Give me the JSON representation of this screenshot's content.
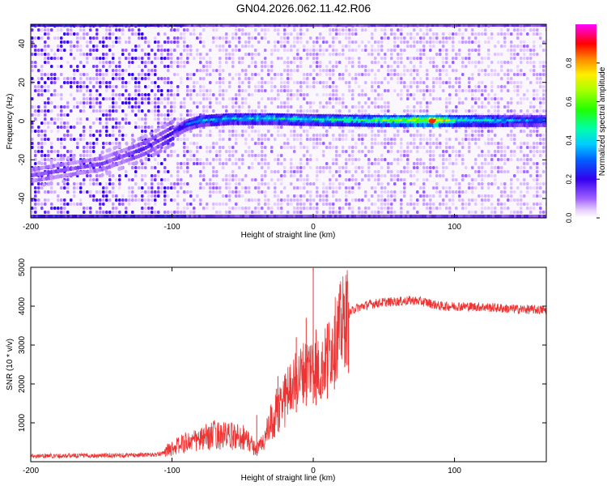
{
  "title": "GN04.2026.062.11.42.R06",
  "chart_data": [
    {
      "type": "heatmap",
      "xlabel": "Height of straight line (km)",
      "ylabel": "Frequency (Hz)",
      "xlim": [
        -200,
        165
      ],
      "ylim": [
        -50,
        50
      ],
      "xticks": [
        -200,
        -100,
        0,
        100
      ],
      "yticks": [
        -40,
        -20,
        0,
        20,
        40
      ],
      "colorbar": {
        "label": "Normalized spectral amplitude",
        "range": [
          0,
          1
        ],
        "ticks": [
          "0.0",
          "0.2",
          "0.4",
          "0.6",
          "0.8"
        ]
      },
      "ridge": {
        "frequency_profile": [
          [
            -200,
            -28
          ],
          [
            -150,
            -22
          ],
          [
            -120,
            -14
          ],
          [
            -100,
            -6
          ],
          [
            -90,
            -2
          ],
          [
            -80,
            0
          ],
          [
            -60,
            1
          ],
          [
            -30,
            1
          ],
          [
            0,
            0.5
          ],
          [
            50,
            0
          ],
          [
            100,
            0
          ],
          [
            165,
            0
          ]
        ],
        "amplitude_profile": [
          [
            -110,
            0.15
          ],
          [
            -95,
            0.25
          ],
          [
            -80,
            0.35
          ],
          [
            -40,
            0.4
          ],
          [
            0,
            0.45
          ],
          [
            40,
            0.5
          ],
          [
            80,
            0.75
          ],
          [
            84,
            0.9
          ],
          [
            100,
            0.5
          ],
          [
            140,
            0.35
          ],
          [
            165,
            0.3
          ]
        ]
      }
    },
    {
      "type": "line",
      "xlabel": "Height of straight line (km)",
      "ylabel": "SNR (10 * v/v)",
      "xlim": [
        -200,
        165
      ],
      "ylim": [
        0,
        5000
      ],
      "xticks": [
        -200,
        -100,
        0,
        100
      ],
      "yticks": [
        1000,
        2000,
        3000,
        4000,
        5000
      ],
      "series": [
        {
          "color": "#ee3333",
          "profile": [
            [
              -200,
              150
            ],
            [
              -150,
              160
            ],
            [
              -110,
              180
            ],
            [
              -100,
              350
            ],
            [
              -90,
              500
            ],
            [
              -80,
              560
            ],
            [
              -70,
              700
            ],
            [
              -60,
              650
            ],
            [
              -50,
              650
            ],
            [
              -45,
              500
            ],
            [
              -40,
              300
            ],
            [
              -35,
              550
            ],
            [
              -30,
              950
            ],
            [
              -25,
              1300
            ],
            [
              -20,
              1750
            ],
            [
              -15,
              2000
            ],
            [
              -10,
              2200
            ],
            [
              -5,
              2400
            ],
            [
              0,
              2500
            ],
            [
              5,
              2300
            ],
            [
              10,
              2700
            ],
            [
              15,
              3100
            ],
            [
              20,
              3500
            ],
            [
              25,
              3800
            ],
            [
              30,
              3950
            ],
            [
              40,
              4050
            ],
            [
              50,
              4100
            ],
            [
              60,
              4120
            ],
            [
              70,
              4150
            ],
            [
              80,
              4100
            ],
            [
              90,
              4000
            ],
            [
              100,
              4000
            ],
            [
              120,
              3980
            ],
            [
              140,
              3930
            ],
            [
              165,
              3900
            ]
          ],
          "spikes": [
            [
              -40,
              1200
            ],
            [
              -25,
              2200
            ],
            [
              -12,
              3200
            ],
            [
              -5,
              3700
            ],
            [
              0,
              5100
            ],
            [
              2,
              3400
            ],
            [
              10,
              3550
            ],
            [
              15,
              3750
            ],
            [
              25,
              4100
            ]
          ]
        }
      ]
    }
  ]
}
